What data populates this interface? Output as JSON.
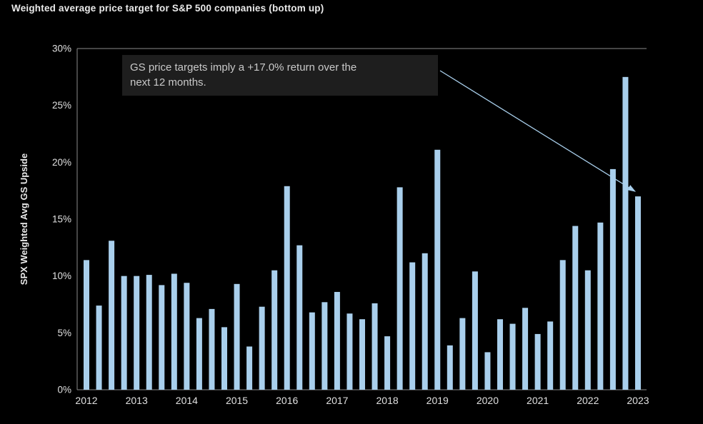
{
  "title": "Weighted average price target for S&P 500 companies (bottom up)",
  "annotation": {
    "text": "GS price targets imply a +17.0% return over the next 12 months.",
    "lines": [
      "GS price targets imply a +17.0% return over the",
      "next 12 months."
    ]
  },
  "chart_data": {
    "type": "bar",
    "title": "Weighted average price target for S&P 500 companies (bottom up)",
    "ylabel": "SPX Weighted Avg GS Upside",
    "xlabel": "",
    "ylim": [
      0,
      30
    ],
    "y_ticks": [
      0,
      5,
      10,
      15,
      20,
      25,
      30
    ],
    "y_tick_suffix": "%",
    "x_ticks": [
      2012,
      2013,
      2014,
      2015,
      2016,
      2017,
      2018,
      2019,
      2020,
      2021,
      2022,
      2023
    ],
    "x_start": 2012.0,
    "x_step": 0.25,
    "frequency": "quarterly",
    "values": [
      11.4,
      7.4,
      13.1,
      10.0,
      10.0,
      10.1,
      9.2,
      10.2,
      9.4,
      6.3,
      7.1,
      5.5,
      9.3,
      3.8,
      7.3,
      10.5,
      17.9,
      12.7,
      6.8,
      7.7,
      8.6,
      6.7,
      6.2,
      7.6,
      4.7,
      17.8,
      11.2,
      12.0,
      21.1,
      3.9,
      6.3,
      10.4,
      3.3,
      6.2,
      5.8,
      7.2,
      4.9,
      6.0,
      11.4,
      14.4,
      10.5,
      14.7,
      19.4,
      27.5,
      17.0
    ],
    "grid": false,
    "legend": "none",
    "annotation_target_value": 17.0
  },
  "colors": {
    "background": "#000000",
    "bar": "#a9cfec",
    "axis": "#8a8a8a",
    "tick_text": "#e0e0e0",
    "title_text": "#eaeaea",
    "ylabel_text": "#e8e8e8",
    "annotation_bg": "#1e1e1e",
    "annotation_text": "#c9c9c9",
    "arrow": "#a9cfec"
  }
}
